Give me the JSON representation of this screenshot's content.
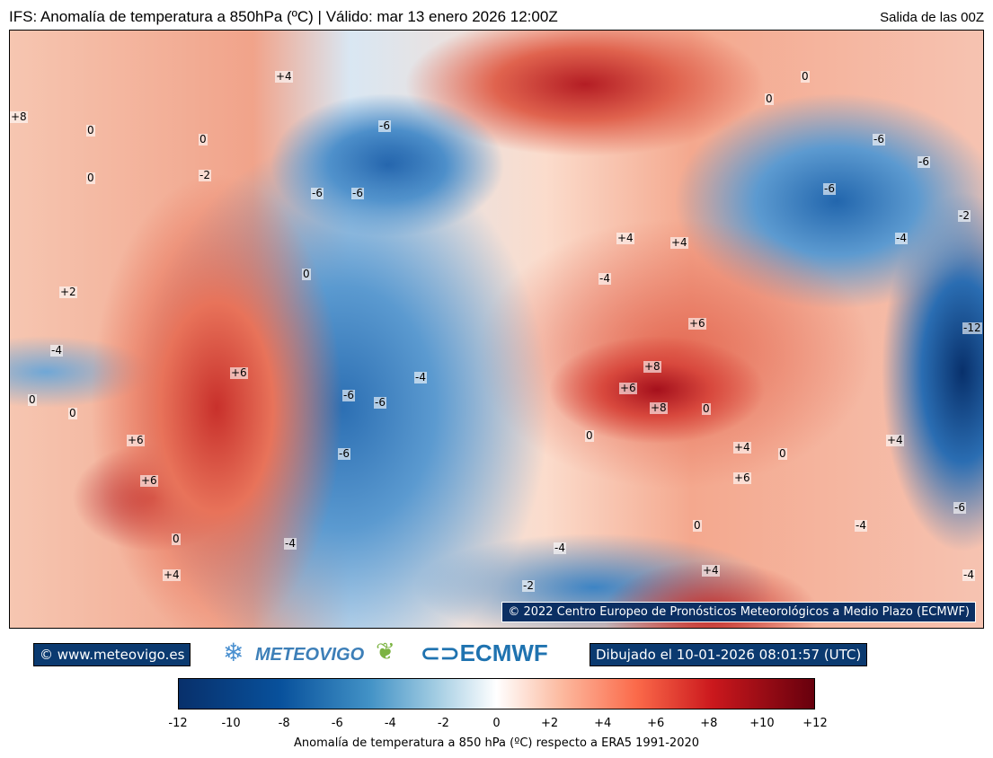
{
  "header": {
    "title": "IFS: Anomalía de temperatura a 850hPa  (ºC) | Válido: mar 13 enero 2026 12:00Z",
    "run": "Salida de las 00Z"
  },
  "map": {
    "copyright": "© 2022 Centro Europeo de Pronósticos Meteorológicos a Medio Plazo (ECMWF)",
    "contour_labels": [
      "+8",
      "0",
      "0",
      "0",
      "-2",
      "-6",
      "-6",
      "-6",
      "0",
      "+2",
      "-4",
      "0",
      "0",
      "+6",
      "+6",
      "+6",
      "-6",
      "-6",
      "-4",
      "-6",
      "-4",
      "0",
      "+4",
      "+4",
      "+4",
      "+4",
      "-4",
      "0",
      "0",
      "-6",
      "-6",
      "-6",
      "-2",
      "-4",
      "-12",
      "+6",
      "+8",
      "+6",
      "+8",
      "0",
      "0",
      "+6",
      "0",
      "-4",
      "-2",
      "+4",
      "-4",
      "-4",
      "-6",
      "+4",
      "0",
      "+4"
    ]
  },
  "footer": {
    "site": "© www.meteovigo.es",
    "meteovigo_logo": "METEOVIGO",
    "ecmwf_logo": "ECMWF",
    "drawn": "Dibujado el 10-01-2026 08:01:57 (UTC)"
  },
  "colorbar": {
    "ticks": [
      "-12",
      "-10",
      "-8",
      "-6",
      "-4",
      "-2",
      "0",
      "+2",
      "+4",
      "+6",
      "+8",
      "+10",
      "+12"
    ],
    "range": [
      -12,
      12
    ],
    "colormap": "RdBu_r",
    "label": "Anomalía de temperatura a 850 hPa (ºC) respecto a ERA5 1991-2020"
  }
}
